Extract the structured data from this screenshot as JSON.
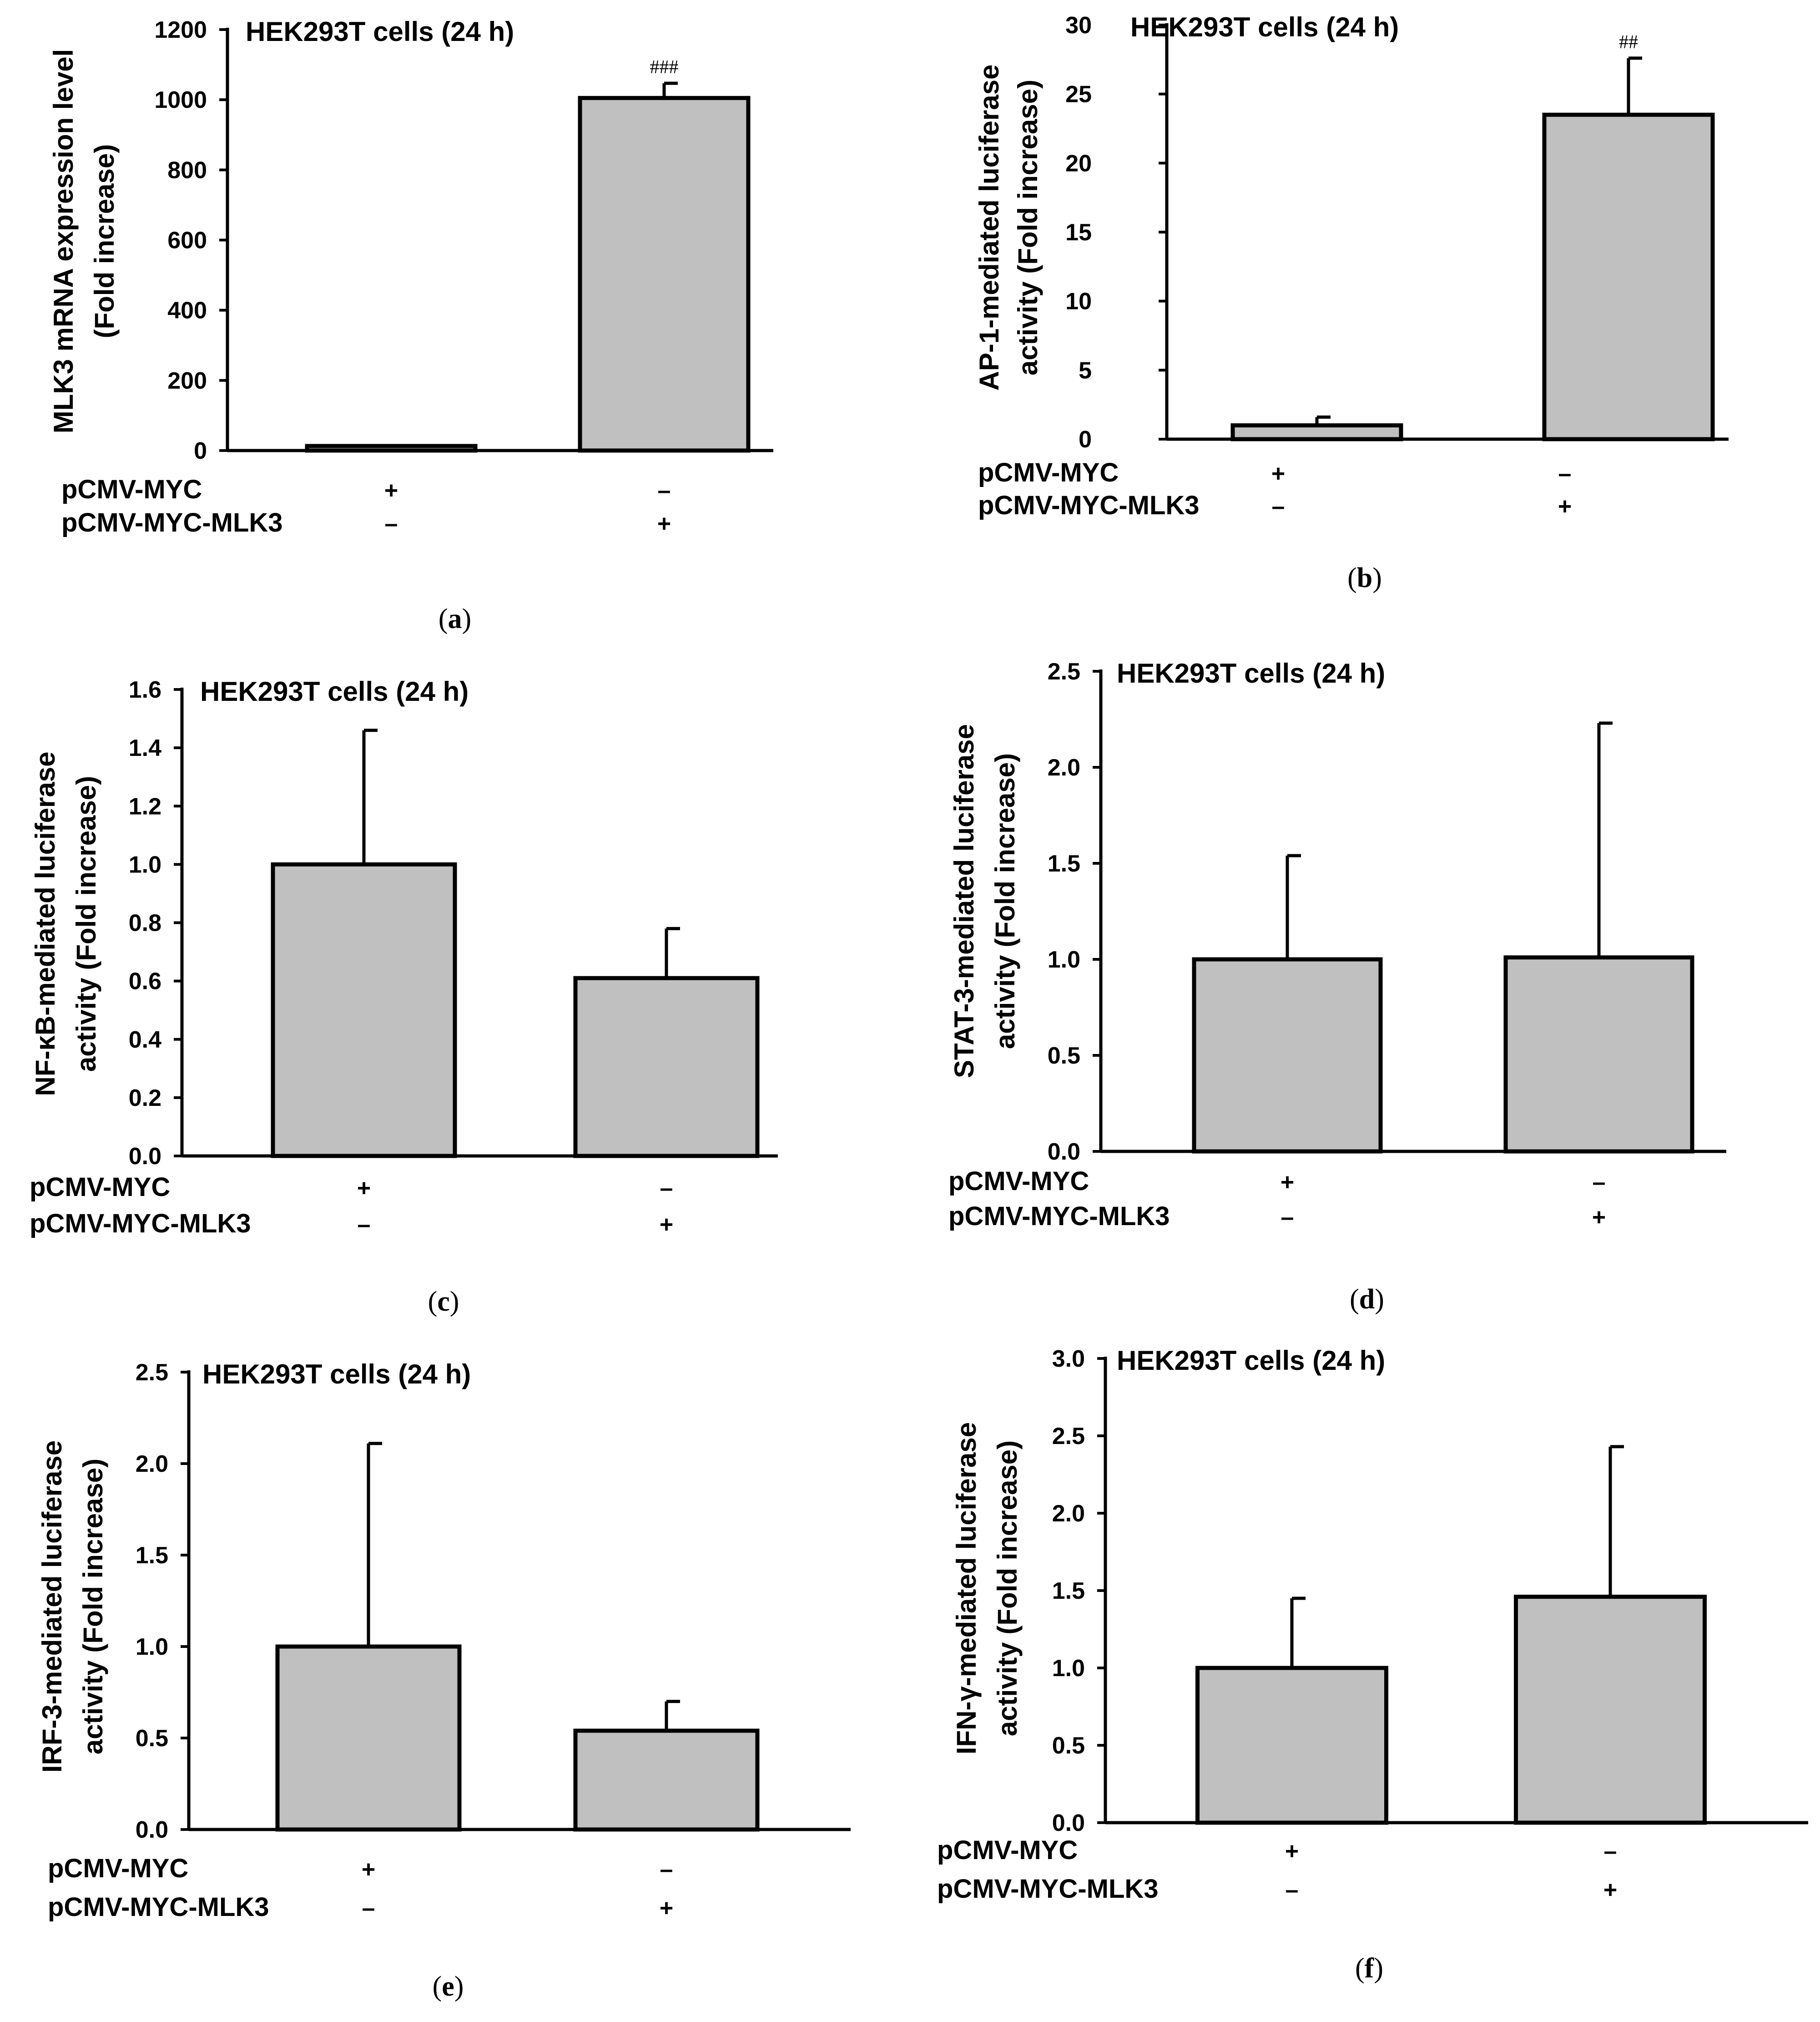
{
  "chart_data": [
    {
      "type": "bar",
      "panel": "a",
      "title": "HEK293T cells (24 h)",
      "ylabel_lines": [
        "MLK3 mRNA expression level",
        "(Fold increase)"
      ],
      "ylim": [
        0,
        1200
      ],
      "yticks": [
        0,
        200,
        400,
        600,
        800,
        1000,
        1200
      ],
      "ytick_labels": [
        "0",
        "200",
        "400",
        "600",
        "800",
        "1000",
        "1200"
      ],
      "categories": [
        "pCMV-MYC",
        "pCMV-MYC-MLK3"
      ],
      "values": [
        1,
        1005
      ],
      "errors": [
        0,
        42
      ],
      "significance": [
        "",
        "###"
      ],
      "row_labels": [
        "pCMV-MYC",
        "pCMV-MYC-MLK3"
      ],
      "conditions": [
        [
          "+",
          "–"
        ],
        [
          "–",
          "+"
        ]
      ]
    },
    {
      "type": "bar",
      "panel": "b",
      "title": "HEK293T cells (24 h)",
      "ylabel_lines": [
        "AP-1-mediated luciferase",
        "activity (Fold increase)"
      ],
      "ylim": [
        0,
        30
      ],
      "yticks": [
        0,
        5,
        10,
        15,
        20,
        25,
        30
      ],
      "ytick_labels": [
        "0",
        "5",
        "10",
        "15",
        "20",
        "25",
        "30"
      ],
      "categories": [
        "pCMV-MYC",
        "pCMV-MYC-MLK3"
      ],
      "values": [
        1.0,
        23.5
      ],
      "errors": [
        0.6,
        4.1
      ],
      "significance": [
        "",
        "##"
      ],
      "row_labels": [
        "pCMV-MYC",
        "pCMV-MYC-MLK3"
      ],
      "conditions": [
        [
          "+",
          "–"
        ],
        [
          "–",
          "+"
        ]
      ]
    },
    {
      "type": "bar",
      "panel": "c",
      "title": "HEK293T cells (24 h)",
      "ylabel_lines": [
        "NF-κB-mediated luciferase",
        "activity (Fold increase)"
      ],
      "ylim": [
        0,
        1.6
      ],
      "yticks": [
        0,
        0.2,
        0.4,
        0.6,
        0.8,
        1.0,
        1.2,
        1.4,
        1.6
      ],
      "ytick_labels": [
        "0.0",
        "0.2",
        "0.4",
        "0.6",
        "0.8",
        "1.0",
        "1.2",
        "1.4",
        "1.6"
      ],
      "categories": [
        "pCMV-MYC",
        "pCMV-MYC-MLK3"
      ],
      "values": [
        1.0,
        0.61
      ],
      "errors": [
        0.46,
        0.17
      ],
      "significance": [
        "",
        ""
      ],
      "row_labels": [
        "pCMV-MYC",
        "pCMV-MYC-MLK3"
      ],
      "conditions": [
        [
          "+",
          "–"
        ],
        [
          "–",
          "+"
        ]
      ]
    },
    {
      "type": "bar",
      "panel": "d",
      "title": "HEK293T cells (24 h)",
      "ylabel_lines": [
        "STAT-3-mediated luciferase",
        "activity (Fold increase)"
      ],
      "ylim": [
        0,
        2.5
      ],
      "yticks": [
        0,
        0.5,
        1.0,
        1.5,
        2.0,
        2.5
      ],
      "ytick_labels": [
        "0.0",
        "0.5",
        "1.0",
        "1.5",
        "2.0",
        "2.5"
      ],
      "categories": [
        "pCMV-MYC",
        "pCMV-MYC-MLK3"
      ],
      "values": [
        1.0,
        1.01
      ],
      "errors": [
        0.54,
        1.22
      ],
      "significance": [
        "",
        ""
      ],
      "row_labels": [
        "pCMV-MYC",
        "pCMV-MYC-MLK3"
      ],
      "conditions": [
        [
          "+",
          "–"
        ],
        [
          "–",
          "+"
        ]
      ]
    },
    {
      "type": "bar",
      "panel": "e",
      "title": "HEK293T cells (24 h)",
      "ylabel_lines": [
        "IRF-3-mediated luciferase",
        "activity (Fold increase)"
      ],
      "ylim": [
        0,
        2.5
      ],
      "yticks": [
        0,
        0.5,
        1.0,
        1.5,
        2.0,
        2.5
      ],
      "ytick_labels": [
        "0.0",
        "0.5",
        "1.0",
        "1.5",
        "2.0",
        "2.5"
      ],
      "categories": [
        "pCMV-MYC",
        "pCMV-MYC-MLK3"
      ],
      "values": [
        1.0,
        0.54
      ],
      "errors": [
        1.11,
        0.16
      ],
      "significance": [
        "",
        ""
      ],
      "row_labels": [
        "pCMV-MYC",
        "pCMV-MYC-MLK3"
      ],
      "conditions": [
        [
          "+",
          "–"
        ],
        [
          "–",
          "+"
        ]
      ]
    },
    {
      "type": "bar",
      "panel": "f",
      "title": "HEK293T cells (24 h)",
      "ylabel_lines": [
        "IFN-γ-mediated luciferase",
        "activity (Fold increase)"
      ],
      "ylim": [
        0,
        3.0
      ],
      "yticks": [
        0,
        0.5,
        1.0,
        1.5,
        2.0,
        2.5,
        3.0
      ],
      "ytick_labels": [
        "0.0",
        "0.5",
        "1.0",
        "1.5",
        "2.0",
        "2.5",
        "3.0"
      ],
      "categories": [
        "pCMV-MYC",
        "pCMV-MYC-MLK3"
      ],
      "values": [
        1.0,
        1.46
      ],
      "errors": [
        0.45,
        0.97
      ],
      "significance": [
        "",
        ""
      ],
      "row_labels": [
        "pCMV-MYC",
        "pCMV-MYC-MLK3"
      ],
      "conditions": [
        [
          "+",
          "–"
        ],
        [
          "–",
          "+"
        ]
      ]
    }
  ],
  "panel_labels": [
    "a",
    "b",
    "c",
    "d",
    "e",
    "f"
  ]
}
